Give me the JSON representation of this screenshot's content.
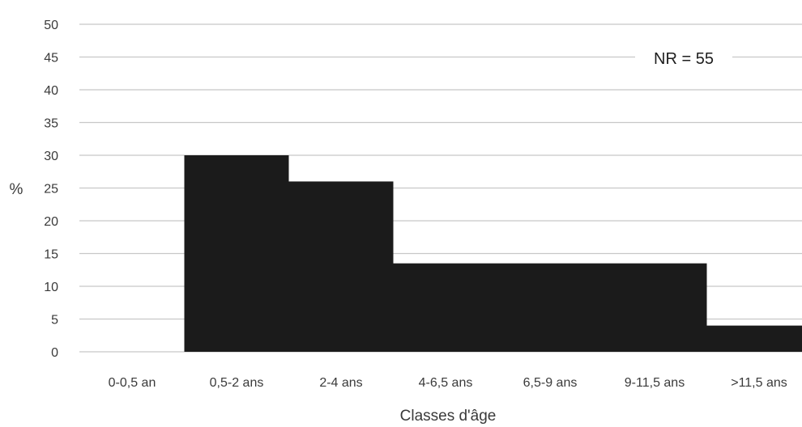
{
  "chart_data": {
    "type": "bar",
    "title": "",
    "xlabel": "Classes d'âge",
    "ylabel": "%",
    "ylim": [
      0,
      50
    ],
    "yticks": [
      0,
      5,
      10,
      15,
      20,
      25,
      30,
      35,
      40,
      45,
      50
    ],
    "categories": [
      "0-0,5 an",
      "0,5-2 ans",
      "2-4 ans",
      "4-6,5 ans",
      "6,5-9 ans",
      "9-11,5 ans",
      ">11,5 ans"
    ],
    "values": [
      0,
      30,
      26,
      13.5,
      13.5,
      13.5,
      4
    ],
    "annotation": "NR = 55",
    "grid": true,
    "bar_gap": 0,
    "colors": {
      "bar": "#1b1b1b",
      "grid": "#c8c8c8",
      "text": "#3a3a3a"
    }
  }
}
